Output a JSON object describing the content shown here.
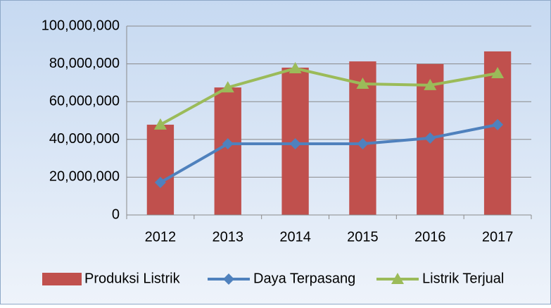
{
  "chart_data": {
    "type": "combo",
    "categories": [
      "2012",
      "2013",
      "2014",
      "2015",
      "2016",
      "2017"
    ],
    "series": [
      {
        "name": "Produksi Listrik",
        "type": "bar",
        "color": "#c0504d",
        "values": [
          47800000,
          67500000,
          78000000,
          81300000,
          79900000,
          86600000
        ]
      },
      {
        "name": "Daya Terpasang",
        "type": "line",
        "marker": "diamond",
        "color": "#4f81bd",
        "values": [
          17200000,
          37700000,
          37700000,
          37700000,
          40700000,
          47800000
        ]
      },
      {
        "name": "Listrik Terjual",
        "type": "line",
        "marker": "triangle",
        "color": "#9bbb59",
        "values": [
          47800000,
          67500000,
          77600000,
          69400000,
          68700000,
          75000000
        ]
      }
    ],
    "ylim": [
      0,
      100000000
    ],
    "yticks": [
      0,
      {
        "value": 20000000,
        "label": "20,000,000"
      },
      {
        "value": 40000000,
        "label": "40,000,000"
      },
      {
        "value": 60000000,
        "label": "60,000,000"
      },
      {
        "value": 80000000,
        "label": "80,000,000"
      },
      {
        "value": 100000000,
        "label": "100,000,000"
      }
    ],
    "grid": true,
    "legend": "bottom"
  }
}
